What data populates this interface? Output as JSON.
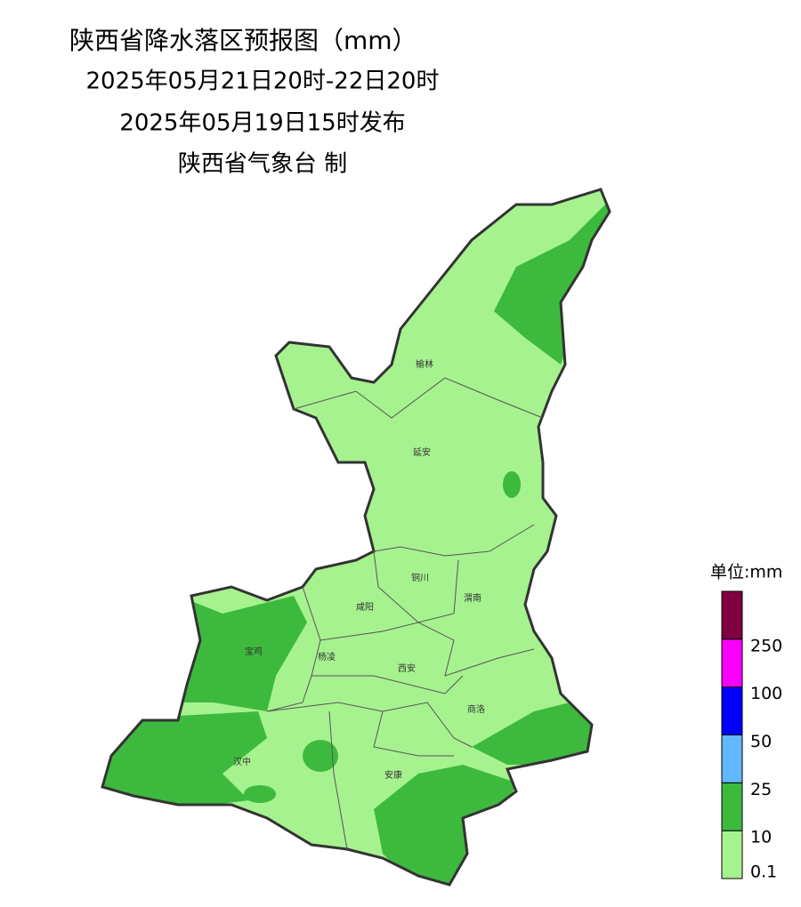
{
  "header": {
    "title": "陕西省降水落区预报图（mm）",
    "period": "2025年05月21日20时-22日20时",
    "issued": "2025年05月19日15时发布",
    "issuer": "陕西省气象台 制"
  },
  "cities": [
    "榆林",
    "延安",
    "铜川",
    "咸阳",
    "渭南",
    "宝鸡",
    "杨凌",
    "西安",
    "商洛",
    "汉中",
    "安康"
  ],
  "legend": {
    "unit": "单位:mm",
    "labels": [
      "0.1",
      "10",
      "25",
      "50",
      "100",
      "250"
    ],
    "colors": [
      "#a6f28f",
      "#3dba3d",
      "#61b8ff",
      "#0000fe",
      "#fa00fa",
      "#800040"
    ]
  }
}
